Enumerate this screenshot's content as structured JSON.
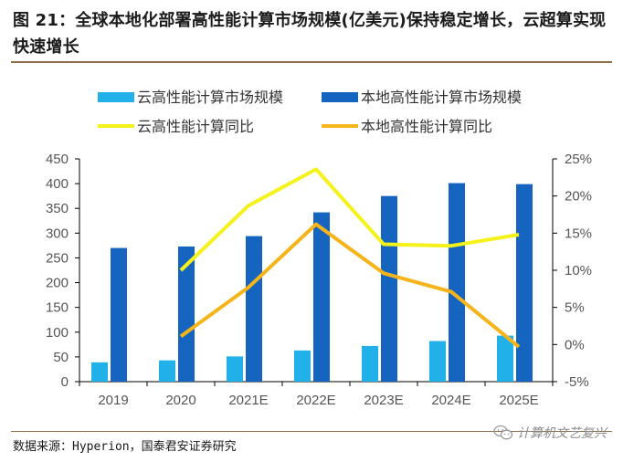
{
  "figure": {
    "title": "图 21：全球本地化部署高性能计算市场规模(亿美元)保持稳定增长，云超算实现快速增长",
    "source": "数据来源：Hyperion，国泰君安证券研究",
    "watermark": "计算机文艺复兴"
  },
  "colors": {
    "cloud_bar": "#21b0e8",
    "local_bar": "#1565c0",
    "cloud_line": "#f5f21b",
    "local_line": "#f5b51a",
    "axis": "#000000"
  },
  "chart_data": {
    "type": "bar",
    "title": "",
    "categories": [
      "2019",
      "2020",
      "2021E",
      "2022E",
      "2023E",
      "2024E",
      "2025E"
    ],
    "y_left": {
      "ylim": [
        0,
        450
      ],
      "ticks": [
        0,
        50,
        100,
        150,
        200,
        250,
        300,
        350,
        400,
        450
      ]
    },
    "y_right": {
      "ylim": [
        -5,
        25
      ],
      "ticks": [
        -5,
        0,
        5,
        10,
        15,
        20,
        25
      ],
      "tick_labels": [
        "-5%",
        "0%",
        "5%",
        "10%",
        "15%",
        "20%",
        "25%"
      ]
    },
    "series": [
      {
        "name": "云高性能计算市场规模",
        "kind": "bar",
        "axis": "left",
        "values": [
          39,
          43,
          51,
          63,
          72,
          82,
          93
        ]
      },
      {
        "name": "本地高性能计算市场规模",
        "kind": "bar",
        "axis": "left",
        "values": [
          270,
          273,
          294,
          342,
          375,
          401,
          399
        ]
      },
      {
        "name": "云高性能计算同比",
        "kind": "line",
        "axis": "right",
        "values": [
          null,
          10.0,
          18.7,
          23.6,
          13.5,
          13.3,
          14.8
        ]
      },
      {
        "name": "本地高性能计算同比",
        "kind": "line",
        "axis": "right",
        "values": [
          null,
          1.1,
          7.7,
          16.2,
          9.6,
          7.1,
          -0.3
        ]
      }
    ],
    "legend": "top"
  }
}
